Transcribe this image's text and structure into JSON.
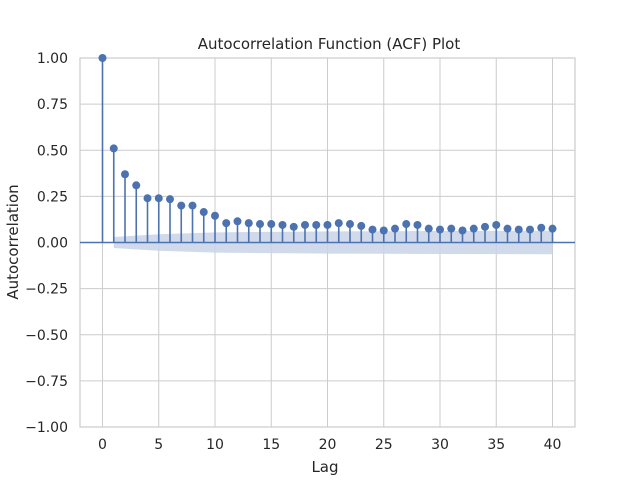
{
  "chart_data": {
    "type": "stem",
    "title": "Autocorrelation Function (ACF) Plot",
    "xlabel": "Lag",
    "ylabel": "Autocorrelation",
    "xlim": [
      -2,
      42
    ],
    "ylim": [
      -1.0,
      1.0
    ],
    "xticks": [
      0,
      5,
      10,
      15,
      20,
      25,
      30,
      35,
      40
    ],
    "yticks": [
      -1.0,
      -0.75,
      -0.5,
      -0.25,
      0.0,
      0.25,
      0.5,
      0.75,
      1.0
    ],
    "xtick_labels": [
      "0",
      "5",
      "10",
      "15",
      "20",
      "25",
      "30",
      "35",
      "40"
    ],
    "ytick_labels": [
      "−1.00",
      "−0.75",
      "−0.50",
      "−0.25",
      "0.00",
      "0.25",
      "0.50",
      "0.75",
      "1.00"
    ],
    "grid": true,
    "lags": [
      0,
      1,
      2,
      3,
      4,
      5,
      6,
      7,
      8,
      9,
      10,
      11,
      12,
      13,
      14,
      15,
      16,
      17,
      18,
      19,
      20,
      21,
      22,
      23,
      24,
      25,
      26,
      27,
      28,
      29,
      30,
      31,
      32,
      33,
      34,
      35,
      36,
      37,
      38,
      39,
      40
    ],
    "values": [
      1.0,
      0.51,
      0.37,
      0.31,
      0.24,
      0.24,
      0.235,
      0.2,
      0.2,
      0.165,
      0.145,
      0.105,
      0.115,
      0.105,
      0.1,
      0.1,
      0.095,
      0.085,
      0.095,
      0.095,
      0.095,
      0.105,
      0.1,
      0.09,
      0.07,
      0.065,
      0.075,
      0.1,
      0.095,
      0.075,
      0.07,
      0.075,
      0.065,
      0.075,
      0.085,
      0.095,
      0.075,
      0.07,
      0.07,
      0.08,
      0.075
    ],
    "confidence_band": {
      "lags": [
        1,
        5,
        10,
        20,
        30,
        40
      ],
      "upper": [
        0.03,
        0.045,
        0.055,
        0.06,
        0.062,
        0.064
      ],
      "lower": [
        -0.03,
        -0.045,
        -0.055,
        -0.06,
        -0.062,
        -0.064
      ]
    },
    "colors": {
      "stem": "#4c72b0",
      "band": "#c9d3e8",
      "grid": "#cccccc",
      "frame": "#cccccc",
      "text": "#262626"
    }
  }
}
